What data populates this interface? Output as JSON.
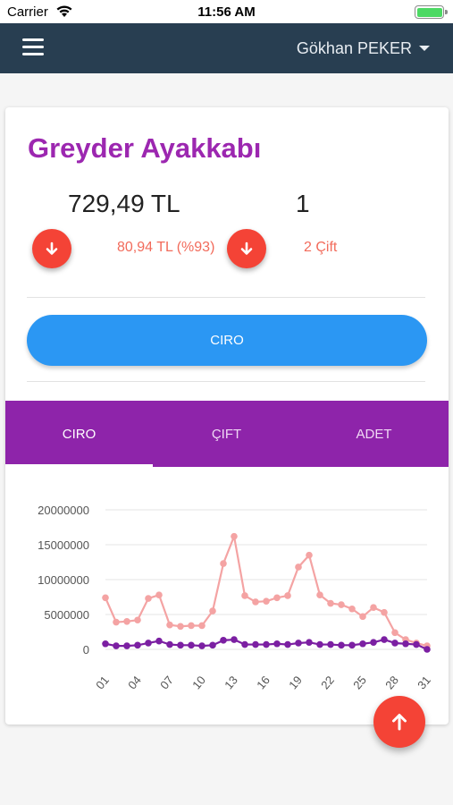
{
  "status_bar": {
    "carrier": "Carrier",
    "time": "11:56 AM"
  },
  "navbar": {
    "user_name": "Gökhan PEKER",
    "menu_icon": "hamburger-icon",
    "color": "#283e51"
  },
  "product": {
    "title": "Greyder Ayakkabı",
    "revenue": "729,49 TL",
    "count": "1",
    "revenue_change": "80,94 TL (%93)",
    "count_change": "2 Çift",
    "accent_color": "#9c27b0",
    "down_color": "#f44336"
  },
  "ciro_button": {
    "label": "CIRO",
    "color": "#2b97f3"
  },
  "tabs": [
    {
      "label": "CIRO",
      "active": true
    },
    {
      "label": "ÇIFT",
      "active": false
    },
    {
      "label": "ADET",
      "active": false
    }
  ],
  "chart_data": {
    "type": "line",
    "x": [
      1,
      2,
      3,
      4,
      5,
      6,
      7,
      8,
      9,
      10,
      11,
      12,
      13,
      14,
      15,
      16,
      17,
      18,
      19,
      20,
      21,
      22,
      23,
      24,
      25,
      26,
      27,
      28,
      29,
      30,
      31
    ],
    "x_tick_labels": [
      "01",
      "04",
      "07",
      "10",
      "13",
      "16",
      "19",
      "22",
      "25",
      "28",
      "31"
    ],
    "y_tick_labels": [
      "20000000",
      "15000000",
      "10000000",
      "5000000",
      "0"
    ],
    "ylim": [
      0,
      20000000
    ],
    "grid": true,
    "series": [
      {
        "color": "#f4a3a3",
        "values": [
          7400000,
          3900000,
          4000000,
          4200000,
          7300000,
          7800000,
          3500000,
          3300000,
          3400000,
          3400000,
          5500000,
          12300000,
          16200000,
          7700000,
          6800000,
          6900000,
          7400000,
          7700000,
          11800000,
          13500000,
          7800000,
          6600000,
          6400000,
          5800000,
          4700000,
          6000000,
          5300000,
          2400000,
          1400000,
          900000,
          500000
        ]
      },
      {
        "color": "#7b1fa2",
        "values": [
          800000,
          500000,
          500000,
          600000,
          900000,
          1200000,
          700000,
          600000,
          600000,
          500000,
          600000,
          1300000,
          1400000,
          700000,
          700000,
          700000,
          800000,
          700000,
          900000,
          1000000,
          700000,
          700000,
          600000,
          600000,
          800000,
          1000000,
          1400000,
          900000,
          800000,
          700000,
          0
        ]
      }
    ]
  },
  "icons": {
    "down_arrow": "arrow-down-icon",
    "up_arrow": "arrow-up-icon",
    "fab_color": "#f44336"
  }
}
